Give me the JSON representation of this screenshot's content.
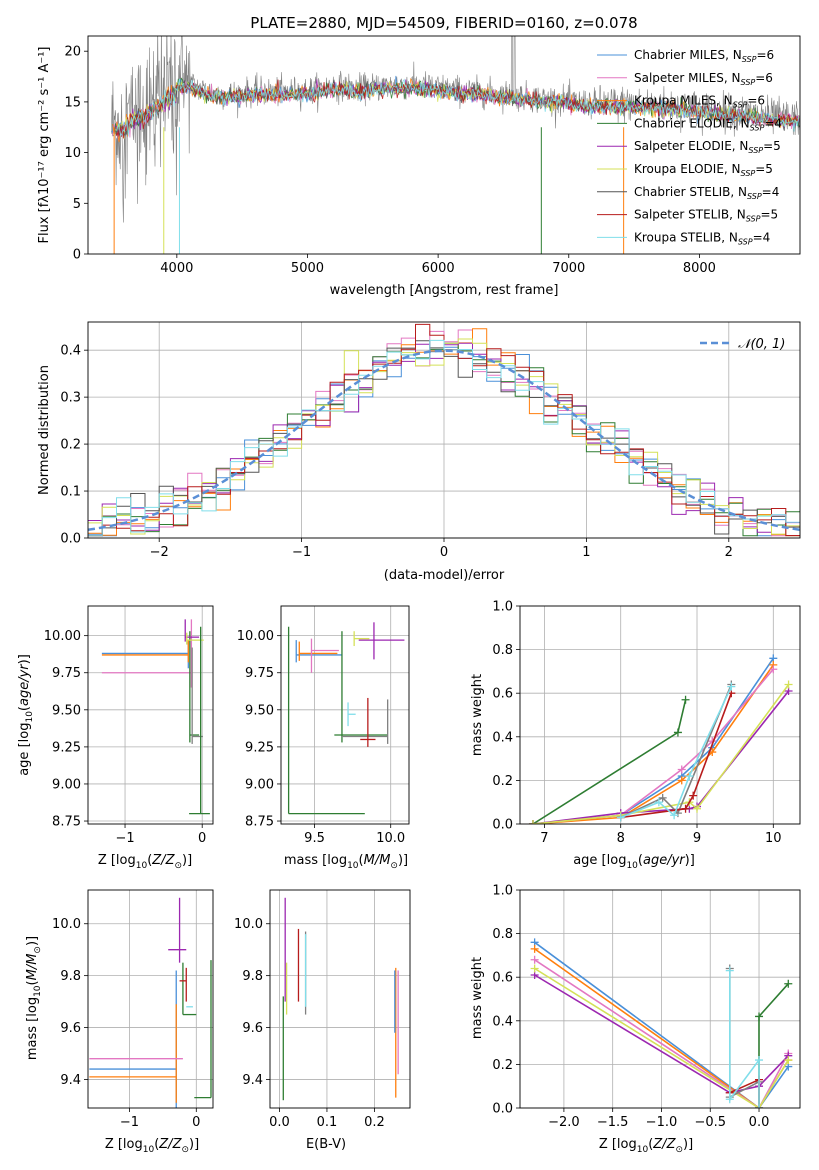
{
  "chart_data": [
    {
      "id": "spectrum",
      "type": "line",
      "title": "PLATE=2880, MJD=54509, FIBERID=0160, z=0.078",
      "xlabel": "wavelength [Angstrom, rest frame]",
      "ylabel": "Flux [f$_\\lambda$10$^{-17}$ erg cm$^{-2}$ s$^{-1}$ A$^{-1}$]",
      "ylabel_display": "Flux [fλ10⁻¹⁷ erg cm⁻² s⁻¹ A⁻¹]",
      "xlim": [
        3320,
        8770
      ],
      "ylim": [
        0,
        21.5
      ],
      "xticks": [
        4000,
        5000,
        6000,
        7000,
        8000
      ],
      "yticks": [
        0,
        5,
        10,
        15,
        20
      ],
      "legend_position": "top-right",
      "grid": false,
      "series": [
        {
          "name": "Chabrier MILES, N$_{SSP}$=6",
          "label": "Chabrier MILES, N",
          "sub": "SSP",
          "suffix": "=6",
          "color": "#4a90d9"
        },
        {
          "name": "Salpeter MILES, N$_{SSP}$=6",
          "label": "Salpeter MILES, N",
          "sub": "SSP",
          "suffix": "=6",
          "color": "#e377c2"
        },
        {
          "name": "Kroupa MILES, N$_{SSP}$=6",
          "label": "Kroupa MILES, N",
          "sub": "SSP",
          "suffix": "=6",
          "color": "#ff7f0e"
        },
        {
          "name": "Chabrier ELODIE, N$_{SSP}$=4",
          "label": "Chabrier ELODIE, N",
          "sub": "SSP",
          "suffix": "=4",
          "color": "#2e7d32"
        },
        {
          "name": "Salpeter ELODIE, N$_{SSP}$=5",
          "label": "Salpeter ELODIE, N",
          "sub": "SSP",
          "suffix": "=5",
          "color": "#9c27b0"
        },
        {
          "name": "Kroupa ELODIE, N$_{SSP}$=5",
          "label": "Kroupa ELODIE, N",
          "sub": "SSP",
          "suffix": "=5",
          "color": "#d4e157"
        },
        {
          "name": "Chabrier STELIB, N$_{SSP}$=4",
          "label": "Chabrier STELIB, N",
          "sub": "SSP",
          "suffix": "=4",
          "color": "#555555"
        },
        {
          "name": "Salpeter STELIB, N$_{SSP}$=5",
          "label": "Salpeter STELIB, N",
          "sub": "SSP",
          "suffix": "=5",
          "color": "#b71c1c"
        },
        {
          "name": "Kroupa STELIB, N$_{SSP}$=4",
          "label": "Kroupa STELIB, N",
          "sub": "SSP",
          "suffix": "=4",
          "color": "#80deea"
        }
      ],
      "continuum": {
        "x": [
          3500,
          3600,
          3700,
          3800,
          3900,
          4000,
          4100,
          4200,
          4300,
          4400,
          4500,
          4600,
          4800,
          5000,
          5200,
          5400,
          5600,
          5800,
          6000,
          6200,
          6400,
          6600,
          6800,
          7000,
          7200,
          7400,
          7600,
          7800,
          8000,
          8200,
          8400,
          8600,
          8700
        ],
        "y": [
          12.8,
          13.3,
          14.2,
          14.8,
          15.8,
          16.8,
          16.8,
          16.2,
          15.8,
          15.7,
          15.9,
          16.0,
          16.0,
          16.1,
          16.6,
          16.3,
          16.6,
          16.7,
          16.4,
          16.1,
          15.9,
          15.6,
          15.3,
          15.1,
          14.8,
          14.8,
          14.7,
          14.6,
          14.3,
          14.0,
          13.8,
          13.5,
          13.4
        ]
      },
      "observed_color": "#808080",
      "notes_drops": [
        3520,
        3900,
        4020,
        6790,
        7420
      ]
    },
    {
      "id": "residuals",
      "type": "histogram",
      "xlabel": "(data-model)/error",
      "ylabel": "Normed distribution",
      "xlim": [
        -2.5,
        2.5
      ],
      "ylim": [
        0,
        0.46
      ],
      "xticks": [
        -2,
        -1,
        0,
        1,
        2
      ],
      "yticks": [
        0.0,
        0.1,
        0.2,
        0.3,
        0.4
      ],
      "grid": true,
      "legend": "𝒩(0, 1)",
      "legend_position": "top-right",
      "normal_color": "#5a8fd6",
      "bin_width": 0.1
    },
    {
      "id": "age_vs_Z",
      "type": "errorbar",
      "xlabel": "Z [log$_{10}$(Z/Z$_\\odot$)]",
      "ylabel": "age  [log$_{10}$(age/yr)]",
      "xlim": [
        -1.48,
        0.14
      ],
      "ylim": [
        8.73,
        10.2
      ],
      "xticks": [
        -1,
        0
      ],
      "yticks": [
        8.75,
        9.0,
        9.25,
        9.5,
        9.75,
        10.0
      ],
      "grid": true,
      "points": [
        {
          "x": -0.18,
          "xerr": [
            1.12,
            0.0
          ],
          "y": 9.88,
          "yerr": [
            0.1,
            0.08
          ],
          "color": "#4a90d9"
        },
        {
          "x": -0.18,
          "xerr": [
            1.12,
            0.0
          ],
          "y": 9.87,
          "yerr": [
            0.05,
            0.1
          ],
          "color": "#ff7f0e"
        },
        {
          "x": -0.14,
          "xerr": [
            1.16,
            0.0
          ],
          "y": 9.75,
          "yerr": [
            0.1,
            0.36
          ],
          "color": "#e377c2"
        },
        {
          "x": -0.16,
          "xerr": [
            0.0,
            0.12
          ],
          "y": 9.33,
          "yerr": [
            0.05,
            0.7
          ],
          "color": "#2e7d32"
        },
        {
          "x": -0.13,
          "xerr": [
            0.0,
            0.14
          ],
          "y": 9.32,
          "yerr": [
            0.05,
            0.6
          ],
          "color": "#808080"
        },
        {
          "x": -0.22,
          "xerr": [
            0.0,
            0.18
          ],
          "y": 9.99,
          "yerr": [
            0.03,
            0.12
          ],
          "color": "#9c27b0"
        },
        {
          "x": -0.2,
          "xerr": [
            0.0,
            0.22
          ],
          "y": 9.97,
          "yerr": [
            0.03,
            0.05
          ],
          "color": "#d4e157"
        },
        {
          "x": -0.02,
          "xerr": [
            0.15,
            0.12
          ],
          "y": 8.8,
          "yerr": [
            0.0,
            1.26
          ],
          "color": "#2e7d32"
        }
      ]
    },
    {
      "id": "age_vs_mass",
      "type": "errorbar",
      "xlabel": "mass [log$_{10}$(M/M$_\\odot$)]",
      "ylabel": "",
      "xlim": [
        9.28,
        10.12
      ],
      "ylim": [
        8.73,
        10.2
      ],
      "xticks": [
        9.5,
        10.0
      ],
      "yticks": [
        8.75,
        9.0,
        9.25,
        9.5,
        9.75,
        10.0
      ],
      "grid": true,
      "points": [
        {
          "x": 9.38,
          "xerr": [
            0.0,
            0.3
          ],
          "y": 9.87,
          "yerr": [
            0.05,
            0.1
          ],
          "color": "#4a90d9"
        },
        {
          "x": 9.4,
          "xerr": [
            0.0,
            0.25
          ],
          "y": 9.88,
          "yerr": [
            0.05,
            0.08
          ],
          "color": "#ff7f0e"
        },
        {
          "x": 9.48,
          "xerr": [
            0.0,
            0.18
          ],
          "y": 9.9,
          "yerr": [
            0.15,
            0.08
          ],
          "color": "#e377c2"
        },
        {
          "x": 9.68,
          "xerr": [
            0.05,
            0.3
          ],
          "y": 9.33,
          "yerr": [
            0.05,
            0.7
          ],
          "color": "#2e7d32"
        },
        {
          "x": 9.98,
          "xerr": [
            0.3,
            0.0
          ],
          "y": 9.32,
          "yerr": [
            0.05,
            0.25
          ],
          "color": "#808080"
        },
        {
          "x": 9.89,
          "xerr": [
            0.1,
            0.2
          ],
          "y": 9.97,
          "yerr": [
            0.13,
            0.12
          ],
          "color": "#9c27b0"
        },
        {
          "x": 9.76,
          "xerr": [
            0.0,
            0.1
          ],
          "y": 9.98,
          "yerr": [
            0.05,
            0.05
          ],
          "color": "#d4e157"
        },
        {
          "x": 9.85,
          "xerr": [
            0.05,
            0.05
          ],
          "y": 9.3,
          "yerr": [
            0.05,
            0.28
          ],
          "color": "#b71c1c"
        },
        {
          "x": 9.72,
          "xerr": [
            0.0,
            0.05
          ],
          "y": 9.47,
          "yerr": [
            0.08,
            0.08
          ],
          "color": "#80deea"
        },
        {
          "x": 9.33,
          "xerr": [
            0.0,
            0.5
          ],
          "y": 8.8,
          "yerr": [
            0.0,
            1.26
          ],
          "color": "#2e7d32"
        }
      ]
    },
    {
      "id": "massweight_vs_age",
      "type": "line",
      "xlabel": "age  [log$_{10}$(age/yr)]",
      "ylabel": "mass weight",
      "xlim": [
        6.68,
        10.35
      ],
      "ylim": [
        0.0,
        1.0
      ],
      "xticks": [
        7,
        8,
        9,
        10
      ],
      "yticks": [
        0.0,
        0.2,
        0.4,
        0.6,
        0.8,
        1.0
      ],
      "grid": true,
      "series": [
        {
          "color": "#4a90d9",
          "x": [
            6.85,
            8.0,
            8.8,
            9.2,
            10.0
          ],
          "y": [
            0.0,
            0.04,
            0.22,
            0.35,
            0.76
          ]
        },
        {
          "color": "#ff7f0e",
          "x": [
            6.85,
            8.0,
            8.8,
            9.2,
            10.0
          ],
          "y": [
            0.0,
            0.03,
            0.2,
            0.33,
            0.73
          ]
        },
        {
          "color": "#e377c2",
          "x": [
            6.85,
            8.0,
            8.8,
            9.2,
            10.0
          ],
          "y": [
            0.0,
            0.04,
            0.25,
            0.38,
            0.71
          ]
        },
        {
          "color": "#2e7d32",
          "x": [
            6.85,
            8.75,
            8.85
          ],
          "y": [
            0.0,
            0.42,
            0.57
          ]
        },
        {
          "color": "#9c27b0",
          "x": [
            6.85,
            8.0,
            8.9,
            9.0,
            10.2
          ],
          "y": [
            0.0,
            0.05,
            0.07,
            0.08,
            0.61
          ]
        },
        {
          "color": "#d4e157",
          "x": [
            6.85,
            8.0,
            8.9,
            9.0,
            10.2
          ],
          "y": [
            0.0,
            0.04,
            0.1,
            0.07,
            0.64
          ]
        },
        {
          "color": "#808080",
          "x": [
            8.0,
            8.55,
            8.75,
            9.45
          ],
          "y": [
            0.03,
            0.12,
            0.05,
            0.64
          ]
        },
        {
          "color": "#b71c1c",
          "x": [
            8.0,
            8.85,
            8.95,
            9.45
          ],
          "y": [
            0.03,
            0.07,
            0.13,
            0.6
          ]
        },
        {
          "color": "#80deea",
          "x": [
            8.0,
            8.5,
            8.7,
            8.9,
            9.45
          ],
          "y": [
            0.03,
            0.1,
            0.04,
            0.22,
            0.63
          ]
        }
      ]
    },
    {
      "id": "mass_vs_Z",
      "type": "errorbar",
      "xlabel": "Z [log$_{10}$(Z/Z$_\\odot$)]",
      "ylabel": "mass [log$_{10}$(M/M$_\\odot$)]",
      "xlim": [
        -1.62,
        0.25
      ],
      "ylim": [
        9.29,
        10.13
      ],
      "xticks": [
        -1,
        0
      ],
      "yticks": [
        9.4,
        9.6,
        9.8,
        10.0
      ],
      "grid": true,
      "points": [
        {
          "x": -0.3,
          "xerr": [
            1.3,
            0.0
          ],
          "y": 9.44,
          "yerr": [
            0.15,
            0.38
          ],
          "color": "#4a90d9"
        },
        {
          "x": -0.3,
          "xerr": [
            1.3,
            0.0
          ],
          "y": 9.41,
          "yerr": [
            0.1,
            0.28
          ],
          "color": "#ff7f0e"
        },
        {
          "x": -0.3,
          "xerr": [
            1.3,
            0.1
          ],
          "y": 9.48,
          "yerr": [
            0.0,
            0.0
          ],
          "color": "#e377c2"
        },
        {
          "x": -0.2,
          "xerr": [
            0.0,
            0.2
          ],
          "y": 9.65,
          "yerr": [
            0.0,
            0.2
          ],
          "color": "#2e7d32"
        },
        {
          "x": -0.25,
          "xerr": [
            0.17,
            0.1
          ],
          "y": 9.9,
          "yerr": [
            0.05,
            0.2
          ],
          "color": "#9c27b0"
        },
        {
          "x": -0.15,
          "xerr": [
            0.1,
            0.0
          ],
          "y": 9.78,
          "yerr": [
            0.08,
            0.05
          ],
          "color": "#b71c1c"
        },
        {
          "x": -0.15,
          "xerr": [
            0.0,
            0.1
          ],
          "y": 9.68,
          "yerr": [
            0.0,
            0.0
          ],
          "color": "#80deea"
        },
        {
          "x": 0.22,
          "xerr": [
            0.25,
            0.0
          ],
          "y": 9.33,
          "yerr": [
            0.0,
            0.53
          ],
          "color": "#2e7d32"
        }
      ]
    },
    {
      "id": "mass_vs_ebv",
      "type": "errorbar",
      "xlabel": "E(B-V)",
      "ylabel": "",
      "xlim": [
        -0.02,
        0.275
      ],
      "ylim": [
        9.29,
        10.13
      ],
      "xticks": [
        0.0,
        0.1,
        0.2
      ],
      "yticks": [
        9.4,
        9.6,
        9.8,
        10.0
      ],
      "grid": true,
      "points": [
        {
          "x": 0.012,
          "xerr": [
            0.0,
            0.0
          ],
          "y": 9.9,
          "yerr": [
            0.2,
            0.2
          ],
          "color": "#9c27b0"
        },
        {
          "x": 0.015,
          "xerr": [
            0.0,
            0.0
          ],
          "y": 9.75,
          "yerr": [
            0.1,
            0.1
          ],
          "color": "#d4e157"
        },
        {
          "x": 0.008,
          "xerr": [
            0.0,
            0.0
          ],
          "y": 9.52,
          "yerr": [
            0.2,
            0.2
          ],
          "color": "#2e7d32"
        },
        {
          "x": 0.04,
          "xerr": [
            0.0,
            0.0
          ],
          "y": 9.84,
          "yerr": [
            0.14,
            0.14
          ],
          "color": "#b71c1c"
        },
        {
          "x": 0.055,
          "xerr": [
            0.0,
            0.0
          ],
          "y": 9.81,
          "yerr": [
            0.16,
            0.16
          ],
          "color": "#808080"
        },
        {
          "x": 0.055,
          "xerr": [
            0.0,
            0.0
          ],
          "y": 9.82,
          "yerr": [
            0.14,
            0.14
          ],
          "color": "#80deea"
        },
        {
          "x": 0.245,
          "xerr": [
            0.0,
            0.0
          ],
          "y": 9.58,
          "yerr": [
            0.25,
            0.25
          ],
          "color": "#ff7f0e"
        },
        {
          "x": 0.25,
          "xerr": [
            0.0,
            0.0
          ],
          "y": 9.62,
          "yerr": [
            0.2,
            0.2
          ],
          "color": "#e377c2"
        },
        {
          "x": 0.243,
          "xerr": [
            0.0,
            0.0
          ],
          "y": 9.7,
          "yerr": [
            0.12,
            0.12
          ],
          "color": "#4a90d9"
        }
      ]
    },
    {
      "id": "massweight_vs_Z",
      "type": "line",
      "xlabel": "Z [log$_{10}$(Z/Z$_\\odot$)]",
      "ylabel": "mass weight",
      "xlim": [
        -2.45,
        0.42
      ],
      "ylim": [
        0.0,
        1.0
      ],
      "xticks": [
        -2.0,
        -1.5,
        -1.0,
        -0.5,
        0.0
      ],
      "yticks": [
        0.0,
        0.2,
        0.4,
        0.6,
        0.8,
        1.0
      ],
      "grid": true,
      "series": [
        {
          "color": "#4a90d9",
          "x": [
            -2.3,
            0.0,
            0.3
          ],
          "y": [
            0.76,
            0.0,
            0.19
          ]
        },
        {
          "color": "#ff7f0e",
          "x": [
            -2.3,
            0.0,
            0.3
          ],
          "y": [
            0.73,
            0.0,
            0.22
          ]
        },
        {
          "color": "#e377c2",
          "x": [
            -2.3,
            0.0,
            0.3
          ],
          "y": [
            0.68,
            0.0,
            0.25
          ]
        },
        {
          "color": "#9c27b0",
          "x": [
            -2.3,
            -0.3,
            0.0,
            0.3
          ],
          "y": [
            0.61,
            0.07,
            0.1,
            0.24
          ]
        },
        {
          "color": "#d4e157",
          "x": [
            -2.3,
            0.0,
            0.3
          ],
          "y": [
            0.64,
            0.0,
            0.22
          ]
        },
        {
          "color": "#2e7d32",
          "x": [
            0.0,
            0.0,
            0.3
          ],
          "y": [
            0.0,
            0.42,
            0.57
          ]
        },
        {
          "color": "#808080",
          "x": [
            -0.3,
            -0.3,
            0.0,
            0.0
          ],
          "y": [
            0.64,
            0.05,
            0.12,
            0.0
          ]
        },
        {
          "color": "#b71c1c",
          "x": [
            -0.3,
            0.0,
            0.0
          ],
          "y": [
            0.07,
            0.13,
            0.0
          ]
        },
        {
          "color": "#80deea",
          "x": [
            -0.3,
            -0.3,
            0.0,
            0.0
          ],
          "y": [
            0.63,
            0.04,
            0.22,
            0.0
          ]
        }
      ]
    }
  ]
}
